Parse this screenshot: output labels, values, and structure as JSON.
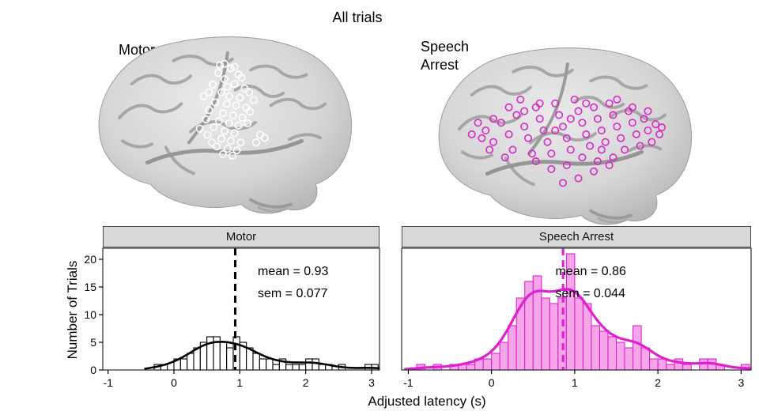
{
  "figure": {
    "title": "All trials",
    "motor_label": "Motor",
    "speech_label_line1": "Speech",
    "speech_label_line2": "Arrest"
  },
  "axes": {
    "x_label": "Adjusted latency (s)",
    "y_label": "Number of Trials"
  },
  "colors": {
    "motor_line": "#000000",
    "motor_fill": "#ffffff",
    "speech_line": "#e020d0",
    "speech_fill": "#f5a6e8",
    "electrode_motor": "#ffffff",
    "electrode_speech_arrest": "#d824c8",
    "brain_surface": "#d6d6d6"
  },
  "electrodes": {
    "motor": [
      [
        186,
        60
      ],
      [
        200,
        64
      ],
      [
        210,
        72
      ],
      [
        192,
        78
      ],
      [
        177,
        85
      ],
      [
        205,
        84
      ],
      [
        218,
        90
      ],
      [
        188,
        95
      ],
      [
        198,
        100
      ],
      [
        212,
        102
      ],
      [
        180,
        108
      ],
      [
        195,
        110
      ],
      [
        207,
        112
      ],
      [
        220,
        115
      ],
      [
        172,
        118
      ],
      [
        190,
        122
      ],
      [
        203,
        125
      ],
      [
        215,
        128
      ],
      [
        185,
        132
      ],
      [
        198,
        135
      ],
      [
        210,
        138
      ],
      [
        178,
        140
      ],
      [
        192,
        145
      ],
      [
        205,
        148
      ],
      [
        170,
        150
      ],
      [
        188,
        155
      ],
      [
        200,
        158
      ],
      [
        213,
        160
      ],
      [
        182,
        165
      ],
      [
        196,
        168
      ],
      [
        208,
        170
      ],
      [
        190,
        175
      ],
      [
        202,
        177
      ],
      [
        176,
        160
      ],
      [
        222,
        135
      ],
      [
        225,
        120
      ],
      [
        168,
        130
      ],
      [
        230,
        105
      ],
      [
        165,
        100
      ],
      [
        238,
        150
      ],
      [
        233,
        160
      ],
      [
        160,
        142
      ],
      [
        196,
        88
      ],
      [
        184,
        70
      ],
      [
        214,
        76
      ],
      [
        224,
        95
      ],
      [
        205,
        62
      ],
      [
        172,
        95
      ],
      [
        244,
        154
      ],
      [
        192,
        58
      ]
    ],
    "speech_arrest": [
      [
        90,
        130
      ],
      [
        100,
        145
      ],
      [
        110,
        120
      ],
      [
        120,
        135
      ],
      [
        125,
        155
      ],
      [
        130,
        110
      ],
      [
        140,
        125
      ],
      [
        145,
        140
      ],
      [
        150,
        160
      ],
      [
        155,
        100
      ],
      [
        160,
        115
      ],
      [
        165,
        130
      ],
      [
        170,
        145
      ],
      [
        175,
        160
      ],
      [
        180,
        95
      ],
      [
        185,
        110
      ],
      [
        190,
        125
      ],
      [
        195,
        140
      ],
      [
        200,
        155
      ],
      [
        205,
        90
      ],
      [
        210,
        105
      ],
      [
        215,
        120
      ],
      [
        220,
        135
      ],
      [
        225,
        150
      ],
      [
        230,
        100
      ],
      [
        235,
        115
      ],
      [
        240,
        130
      ],
      [
        245,
        145
      ],
      [
        250,
        95
      ],
      [
        255,
        110
      ],
      [
        260,
        125
      ],
      [
        265,
        140
      ],
      [
        270,
        155
      ],
      [
        275,
        105
      ],
      [
        280,
        120
      ],
      [
        285,
        135
      ],
      [
        290,
        150
      ],
      [
        295,
        115
      ],
      [
        300,
        130
      ],
      [
        305,
        145
      ],
      [
        135,
        90
      ],
      [
        155,
        170
      ],
      [
        175,
        180
      ],
      [
        195,
        175
      ],
      [
        215,
        165
      ],
      [
        235,
        170
      ],
      [
        255,
        165
      ],
      [
        115,
        165
      ],
      [
        95,
        155
      ],
      [
        85,
        140
      ],
      [
        310,
        122
      ],
      [
        315,
        135
      ],
      [
        318,
        126
      ],
      [
        140,
        105
      ],
      [
        160,
        95
      ],
      [
        180,
        130
      ],
      [
        200,
        115
      ],
      [
        220,
        95
      ],
      [
        240,
        155
      ],
      [
        260,
        90
      ],
      [
        280,
        100
      ],
      [
        300,
        105
      ],
      [
        120,
        100
      ],
      [
        100,
        115
      ],
      [
        250,
        175
      ],
      [
        230,
        183
      ],
      [
        210,
        192
      ],
      [
        190,
        198
      ],
      [
        72,
        135
      ],
      [
        80,
        120
      ]
    ]
  },
  "chart_data": [
    {
      "type": "histogram",
      "panel": "Motor",
      "mean": 0.93,
      "sem": 0.077,
      "mean_label": "mean = 0.93",
      "sem_label": "sem = 0.077",
      "bin_width": 0.1,
      "bins": [
        [
          -0.3,
          1
        ],
        [
          -0.2,
          1
        ],
        [
          0.0,
          2
        ],
        [
          0.1,
          2
        ],
        [
          0.2,
          3
        ],
        [
          0.3,
          4
        ],
        [
          0.4,
          5
        ],
        [
          0.5,
          6
        ],
        [
          0.6,
          6
        ],
        [
          0.7,
          5
        ],
        [
          0.8,
          4
        ],
        [
          0.9,
          6
        ],
        [
          1.0,
          5
        ],
        [
          1.1,
          4
        ],
        [
          1.2,
          3
        ],
        [
          1.3,
          2
        ],
        [
          1.4,
          2
        ],
        [
          1.5,
          1
        ],
        [
          1.6,
          2
        ],
        [
          1.7,
          1
        ],
        [
          1.8,
          1
        ],
        [
          1.9,
          1
        ],
        [
          2.0,
          2
        ],
        [
          2.1,
          2
        ],
        [
          2.2,
          1
        ],
        [
          2.3,
          1
        ],
        [
          2.5,
          1
        ],
        [
          2.9,
          1
        ],
        [
          3.0,
          1
        ]
      ],
      "smooth_bandwidth": 0.22,
      "line_color": "#000000",
      "fill_color": "#ffffff",
      "xlim": [
        -1.08,
        3.12
      ],
      "ylim": [
        0,
        22
      ],
      "x_ticks": [
        -1,
        0,
        1,
        2,
        3
      ],
      "y_ticks": [
        0,
        5,
        10,
        15,
        20
      ]
    },
    {
      "type": "histogram",
      "panel": "Speech Arrest",
      "mean": 0.86,
      "sem": 0.044,
      "mean_label": "mean = 0.86",
      "sem_label": "sem = 0.044",
      "bin_width": 0.1,
      "bins": [
        [
          -0.9,
          1
        ],
        [
          -0.7,
          1
        ],
        [
          -0.5,
          1
        ],
        [
          -0.4,
          1
        ],
        [
          -0.3,
          1
        ],
        [
          -0.2,
          2
        ],
        [
          -0.1,
          2
        ],
        [
          0.0,
          3
        ],
        [
          0.1,
          5
        ],
        [
          0.2,
          8
        ],
        [
          0.3,
          13
        ],
        [
          0.4,
          16
        ],
        [
          0.5,
          17
        ],
        [
          0.6,
          13
        ],
        [
          0.7,
          12
        ],
        [
          0.8,
          13
        ],
        [
          0.9,
          21
        ],
        [
          1.0,
          13
        ],
        [
          1.1,
          12
        ],
        [
          1.2,
          8
        ],
        [
          1.3,
          7
        ],
        [
          1.4,
          6
        ],
        [
          1.5,
          5
        ],
        [
          1.6,
          4
        ],
        [
          1.7,
          8
        ],
        [
          1.8,
          4
        ],
        [
          1.9,
          2
        ],
        [
          2.0,
          2
        ],
        [
          2.1,
          1
        ],
        [
          2.2,
          2
        ],
        [
          2.3,
          1
        ],
        [
          2.5,
          2
        ],
        [
          2.6,
          2
        ],
        [
          2.7,
          1
        ],
        [
          3.0,
          1
        ]
      ],
      "smooth_bandwidth": 0.16,
      "line_color": "#e020d0",
      "fill_color": "#f5a6e8",
      "xlim": [
        -1.08,
        3.12
      ],
      "ylim": [
        0,
        22
      ],
      "x_ticks": [
        -1,
        0,
        1,
        2,
        3
      ],
      "y_ticks": [
        0,
        5,
        10,
        15,
        20
      ]
    }
  ]
}
